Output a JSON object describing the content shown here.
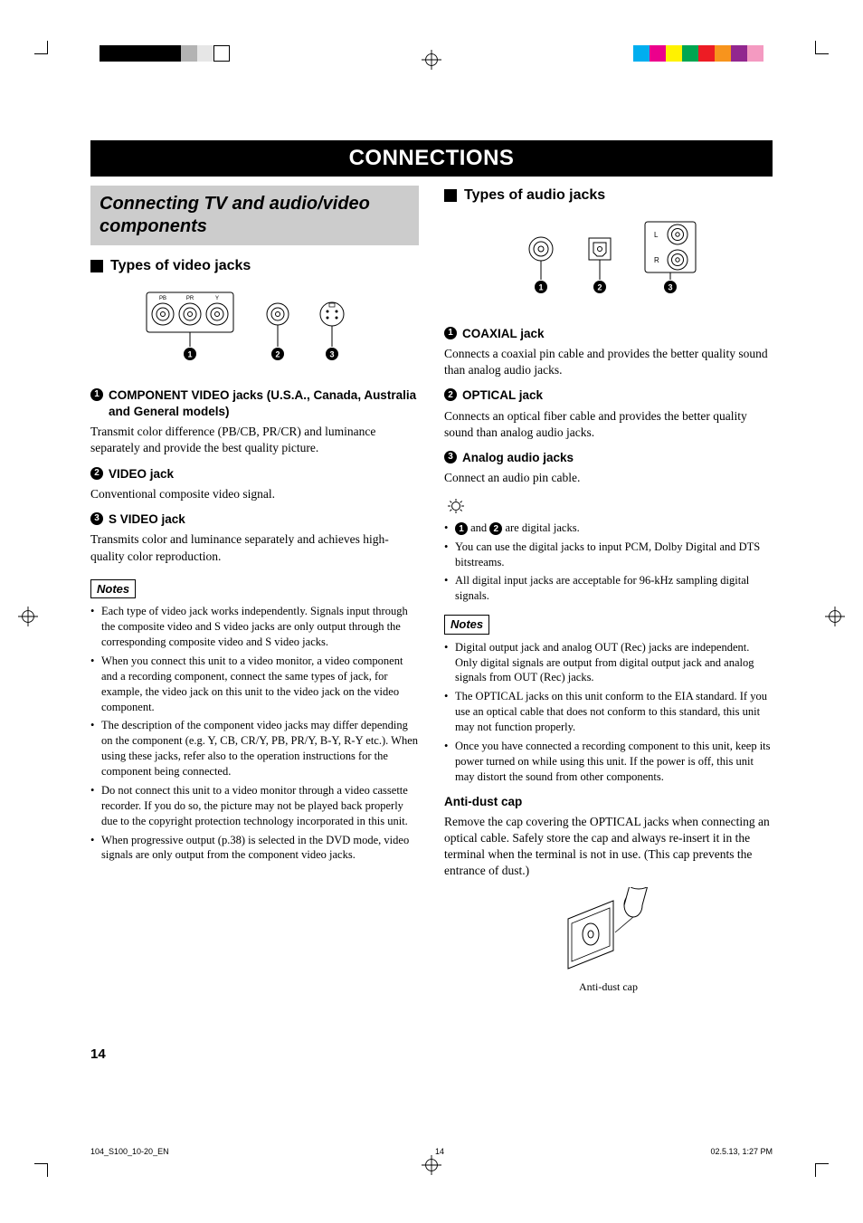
{
  "print": {
    "colorbar_left": [
      "#000000",
      "#000000",
      "#000000",
      "#000000",
      "#000000",
      "#b3b3b3",
      "#e6e6e6",
      "#ffffff"
    ],
    "colorbar_right": [
      "#00aeef",
      "#ec008c",
      "#fff200",
      "#00a651",
      "#ed1c24",
      "#f7941d",
      "#92278f",
      "#f49ac1"
    ]
  },
  "title": "CONNECTIONS",
  "section_box": "Connecting TV and audio/video components",
  "left": {
    "h2": "Types of video jacks",
    "diagram": {
      "component_labels": [
        "PB",
        "PR",
        "Y"
      ],
      "markers": [
        "1",
        "2",
        "3"
      ]
    },
    "items": [
      {
        "num": "1",
        "title": "COMPONENT VIDEO jacks (U.S.A., Canada, Australia and General models)",
        "body": "Transmit color difference (PB/CB, PR/CR) and luminance separately and provide the best quality picture."
      },
      {
        "num": "2",
        "title": "VIDEO jack",
        "body": "Conventional composite video signal."
      },
      {
        "num": "3",
        "title": "S VIDEO jack",
        "body": "Transmits color and luminance separately and achieves high-quality color reproduction."
      }
    ],
    "notes_hdr": "Notes",
    "notes": [
      "Each type of video jack works independently. Signals input through the composite video and S video jacks are only output through the corresponding composite video and S video jacks.",
      "When you connect this unit to a video monitor, a video component and a recording component, connect the same types of jack, for example, the video jack on this unit to the video jack on the video component.",
      "The description of the component video jacks may differ depending on the component (e.g. Y, CB, CR/Y, PB, PR/Y, B-Y, R-Y etc.). When using these jacks, refer also to the operation instructions for the component being connected.",
      "Do not connect this unit to a video monitor through a video cassette recorder. If you do so, the picture may not be played back properly due to the copyright protection technology incorporated in this unit.",
      "When progressive output (p.38) is selected in the DVD mode, video signals are only output from the component video jacks."
    ]
  },
  "right": {
    "h2": "Types of audio jacks",
    "diagram": {
      "markers": [
        "1",
        "2",
        "3"
      ],
      "analog_labels": [
        "L",
        "R"
      ]
    },
    "items": [
      {
        "num": "1",
        "title": "COAXIAL jack",
        "body": "Connects a coaxial pin cable and provides the better quality sound than analog audio jacks."
      },
      {
        "num": "2",
        "title": "OPTICAL jack",
        "body": "Connects an optical fiber cable and provides the better quality sound than analog audio jacks."
      },
      {
        "num": "3",
        "title": "Analog audio jacks",
        "body": "Connect an audio pin cable."
      }
    ],
    "tips": [
      "1 and 2 are digital jacks.",
      "You can use the digital jacks to input PCM, Dolby Digital and DTS bitstreams.",
      "All digital input jacks are acceptable for 96-kHz sampling digital signals."
    ],
    "notes_hdr": "Notes",
    "notes": [
      "Digital output jack and analog OUT (Rec) jacks are independent. Only digital signals are output from digital output jack and analog signals from OUT (Rec) jacks.",
      "The OPTICAL jacks on this unit conform to the EIA standard. If you use an optical cable that does not conform to this standard, this unit may not function properly.",
      "Once you have connected a recording component to this unit, keep its power turned on while using this unit. If the power is off, this unit may distort the sound from other components."
    ],
    "antidust_h": "Anti-dust cap",
    "antidust_body": "Remove the cap covering the OPTICAL jacks when connecting an optical cable. Safely store the cap and always re-insert it in the terminal when the terminal is not in use. (This cap prevents the entrance of dust.)",
    "antidust_caption": "Anti-dust cap"
  },
  "page_num": "14",
  "footer": {
    "left": "104_S100_10-20_EN",
    "mid": "14",
    "right": "02.5.13, 1:27 PM"
  }
}
